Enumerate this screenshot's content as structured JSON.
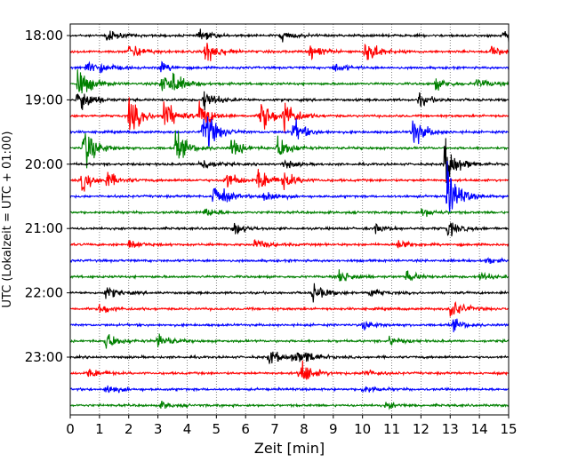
{
  "chart_data": {
    "type": "line",
    "title": "",
    "xlabel": "Zeit  [min]",
    "ylabel": "UTC (Lokalzeit = UTC + 01:00)",
    "xlim": [
      0,
      15
    ],
    "x_ticks": [
      "0",
      "1",
      "2",
      "3",
      "4",
      "5",
      "6",
      "7",
      "8",
      "9",
      "10",
      "11",
      "12",
      "13",
      "14",
      "15"
    ],
    "y_ticks": [
      "18:00",
      "19:00",
      "20:00",
      "21:00",
      "22:00",
      "23:00"
    ],
    "grid": "vertical dotted at each minute",
    "line_interval_min": 15,
    "color_cycle": [
      "#000000",
      "#ff0000",
      "#0000ff",
      "#008000"
    ],
    "traces": [
      {
        "start": "18:00",
        "color": "#000000",
        "events": [
          [
            1.2,
            0.4
          ],
          [
            4.4,
            0.35
          ],
          [
            7.2,
            0.35
          ],
          [
            14.8,
            0.45
          ]
        ]
      },
      {
        "start": "18:15",
        "color": "#ff0000",
        "events": [
          [
            2.0,
            0.6
          ],
          [
            4.6,
            0.9
          ],
          [
            8.2,
            0.5
          ],
          [
            10.1,
            0.9
          ],
          [
            14.4,
            0.3
          ]
        ]
      },
      {
        "start": "18:30",
        "color": "#0000ff",
        "events": [
          [
            0.5,
            0.4
          ],
          [
            1.0,
            0.3
          ],
          [
            3.0,
            0.35
          ],
          [
            9.0,
            0.3
          ]
        ]
      },
      {
        "start": "18:45",
        "color": "#008000",
        "events": [
          [
            0.25,
            1.1
          ],
          [
            3.1,
            0.8
          ],
          [
            3.5,
            0.5
          ],
          [
            12.5,
            0.35
          ],
          [
            13.9,
            0.35
          ]
        ]
      },
      {
        "start": "19:00",
        "color": "#000000",
        "events": [
          [
            0.25,
            1.1
          ],
          [
            4.55,
            0.7
          ],
          [
            11.9,
            0.4
          ]
        ]
      },
      {
        "start": "19:15",
        "color": "#ff0000",
        "events": [
          [
            2.0,
            1.2
          ],
          [
            3.2,
            1.0
          ],
          [
            4.4,
            0.9
          ],
          [
            6.5,
            1.1
          ],
          [
            7.3,
            1.0
          ]
        ]
      },
      {
        "start": "19:30",
        "color": "#0000ff",
        "events": [
          [
            4.55,
            1.6
          ],
          [
            7.6,
            0.8
          ],
          [
            11.7,
            1.0
          ]
        ]
      },
      {
        "start": "19:45",
        "color": "#008000",
        "events": [
          [
            0.45,
            1.5
          ],
          [
            3.6,
            1.0
          ],
          [
            5.5,
            0.6
          ],
          [
            7.1,
            0.8
          ]
        ]
      },
      {
        "start": "20:00",
        "color": "#000000",
        "events": [
          [
            4.45,
            0.4
          ],
          [
            7.3,
            0.3
          ],
          [
            12.8,
            1.5
          ]
        ]
      },
      {
        "start": "20:15",
        "color": "#ff0000",
        "events": [
          [
            0.4,
            0.7
          ],
          [
            1.2,
            0.5
          ],
          [
            5.3,
            0.6
          ],
          [
            6.4,
            0.8
          ],
          [
            7.3,
            0.5
          ]
        ]
      },
      {
        "start": "20:30",
        "color": "#0000ff",
        "events": [
          [
            4.9,
            1.0
          ],
          [
            6.6,
            0.5
          ],
          [
            12.9,
            1.7
          ]
        ]
      },
      {
        "start": "20:45",
        "color": "#008000",
        "events": [
          [
            4.6,
            0.3
          ],
          [
            12.0,
            0.3
          ]
        ]
      },
      {
        "start": "21:00",
        "color": "#000000",
        "events": [
          [
            5.6,
            0.4
          ],
          [
            10.4,
            0.3
          ],
          [
            12.9,
            0.5
          ]
        ]
      },
      {
        "start": "21:15",
        "color": "#ff0000",
        "events": [
          [
            2.0,
            0.3
          ],
          [
            6.3,
            0.35
          ],
          [
            11.2,
            0.3
          ]
        ]
      },
      {
        "start": "21:30",
        "color": "#0000ff",
        "events": [
          [
            14.2,
            0.2
          ]
        ]
      },
      {
        "start": "21:45",
        "color": "#008000",
        "events": [
          [
            9.2,
            0.45
          ],
          [
            11.5,
            0.35
          ],
          [
            14.0,
            0.3
          ]
        ]
      },
      {
        "start": "22:00",
        "color": "#000000",
        "events": [
          [
            1.2,
            0.4
          ],
          [
            8.3,
            0.6
          ],
          [
            10.2,
            0.3
          ]
        ]
      },
      {
        "start": "22:15",
        "color": "#ff0000",
        "events": [
          [
            1.0,
            0.35
          ],
          [
            13.0,
            0.7
          ]
        ]
      },
      {
        "start": "22:30",
        "color": "#0000ff",
        "events": [
          [
            10.0,
            0.3
          ],
          [
            13.1,
            0.35
          ]
        ]
      },
      {
        "start": "22:45",
        "color": "#008000",
        "events": [
          [
            1.2,
            0.6
          ],
          [
            3.0,
            0.5
          ],
          [
            10.9,
            0.3
          ]
        ]
      },
      {
        "start": "23:00",
        "color": "#000000",
        "events": [
          [
            6.8,
            0.5
          ],
          [
            7.6,
            0.4
          ],
          [
            8.0,
            0.3
          ]
        ]
      },
      {
        "start": "23:15",
        "color": "#ff0000",
        "events": [
          [
            0.6,
            0.3
          ],
          [
            7.85,
            0.9
          ],
          [
            10.0,
            0.3
          ]
        ]
      },
      {
        "start": "23:30",
        "color": "#0000ff",
        "events": [
          [
            1.2,
            0.35
          ],
          [
            10.0,
            0.3
          ]
        ]
      },
      {
        "start": "23:45",
        "color": "#008000",
        "events": [
          [
            3.1,
            0.2
          ],
          [
            10.8,
            0.2
          ]
        ]
      }
    ]
  }
}
